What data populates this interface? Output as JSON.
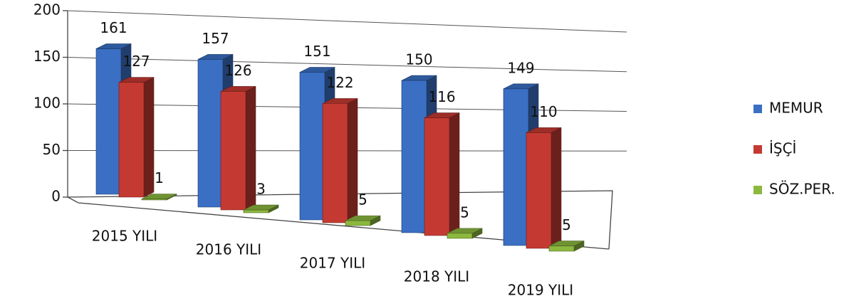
{
  "chart_data": {
    "type": "bar3d",
    "categories": [
      "2015 YILI",
      "2016 YILI",
      "2017 YILI",
      "2018 YILI",
      "2019 YILI"
    ],
    "series": [
      {
        "name": "MEMUR",
        "color": "#3a6fc4",
        "values": [
          161,
          157,
          151,
          150,
          149
        ]
      },
      {
        "name": "İŞÇİ",
        "color": "#c43a32",
        "values": [
          127,
          126,
          122,
          116,
          110
        ]
      },
      {
        "name": "SÖZ.PER.",
        "color": "#8cb83e",
        "values": [
          1,
          3,
          5,
          5,
          5
        ]
      }
    ],
    "ylim": [
      0,
      200
    ],
    "yticks": [
      0,
      50,
      100,
      150,
      200
    ],
    "grid": true,
    "legend": "right"
  }
}
